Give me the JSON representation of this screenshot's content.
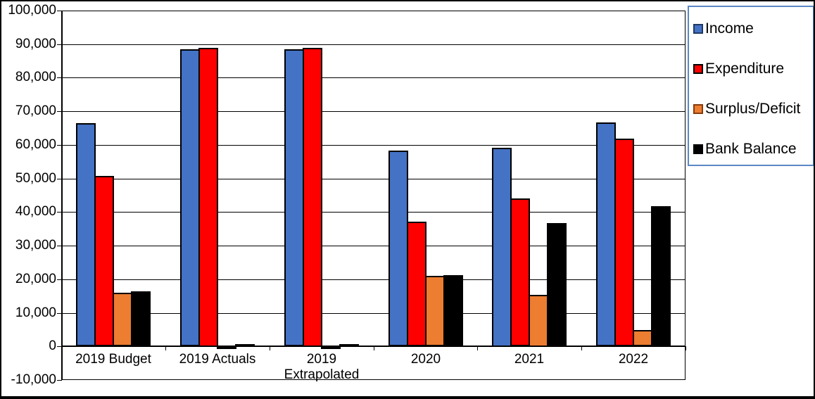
{
  "chart_data": {
    "type": "bar",
    "title": "",
    "categories": [
      "2019 Budget",
      "2019 Actuals",
      "2019 Extrapolated",
      "2020",
      "2021",
      "2022"
    ],
    "series": [
      {
        "name": "Income",
        "color": "#4472C4",
        "marker_border": "#1F3864",
        "values": [
          66500,
          88500,
          88500,
          58300,
          59200,
          66700
        ]
      },
      {
        "name": "Expenditure",
        "color": "#FF0000",
        "marker_border": "#000000",
        "values": [
          50700,
          89000,
          89000,
          37100,
          44100,
          61800
        ]
      },
      {
        "name": "Surplus/Deficit",
        "color": "#ED7D31",
        "marker_border": "#843C0C",
        "values": [
          16000,
          -500,
          -500,
          21000,
          15400,
          4900
        ]
      },
      {
        "name": "Bank Balance",
        "color": "#000000",
        "marker_border": "#000000",
        "values": [
          16300,
          300,
          300,
          21200,
          36700,
          41700
        ]
      }
    ],
    "ylim": [
      -10000,
      100000
    ],
    "ytick_step": 10000,
    "ytick_labels": [
      "100,000",
      "90,000",
      "80,000",
      "70,000",
      "60,000",
      "50,000",
      "40,000",
      "30,000",
      "20,000",
      "10,000",
      "0",
      "-10,000"
    ],
    "xlabel": "",
    "ylabel": "",
    "grid": true,
    "bar_border_color": "#000000",
    "legend": {
      "position": "right",
      "entries": [
        "Income",
        "Expenditure",
        "Surplus/Deficit",
        "Bank Balance"
      ]
    }
  },
  "colors": {
    "background": "#FFFFFF",
    "axis": "#000000",
    "legend_border": "#5B87C5"
  }
}
